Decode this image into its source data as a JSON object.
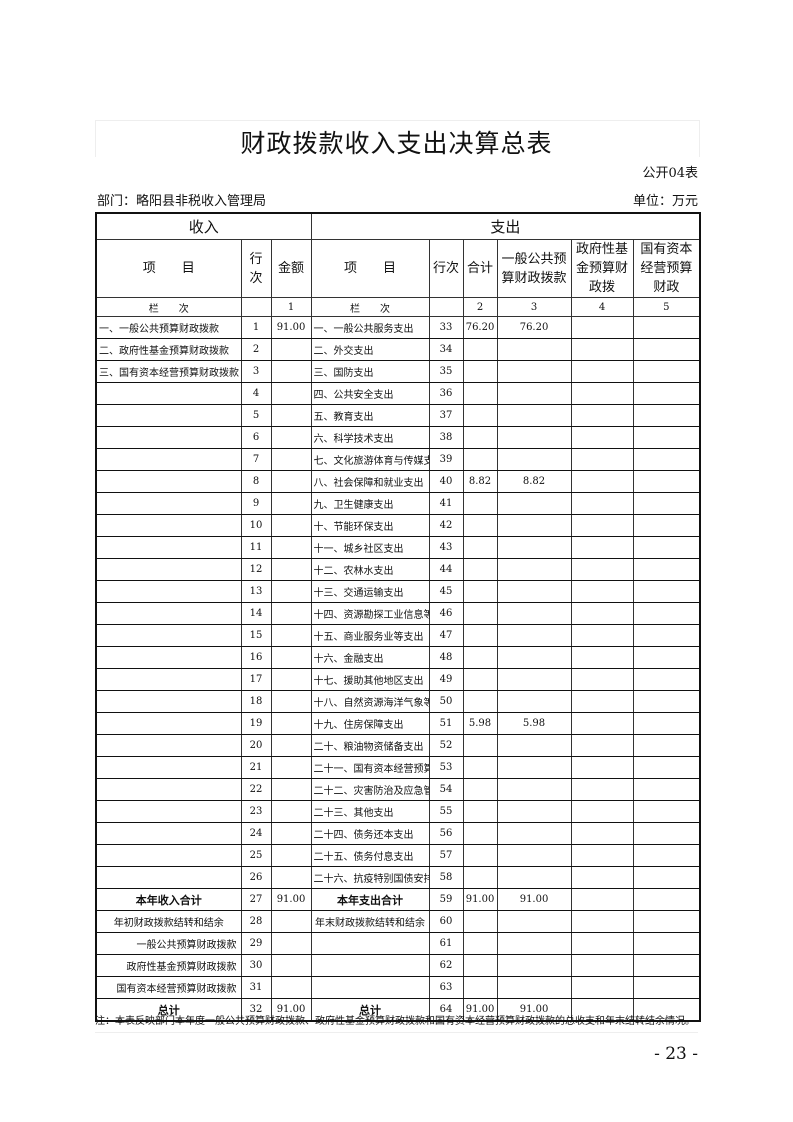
{
  "title": "财政拨款收入支出决算总表",
  "form_no": "公开04表",
  "department": "部门：略阳县非税收入管理局",
  "unit": "单位：万元",
  "header": {
    "income": "收入",
    "expense": "支出",
    "item": "项　　目",
    "line_no": "行次",
    "amount": "金额",
    "total": "合计",
    "general_budget": "一般公共预算财政拨款",
    "gov_fund": "政府性基金预算财政拨",
    "soe_capital": "国有资本经营预算财政",
    "column_label": "栏　　次",
    "col_1": "1",
    "col_2": "2",
    "col_3": "3",
    "col_4": "4",
    "col_5": "5"
  },
  "rows": [
    [
      "一、一般公共预算财政拨款",
      "1",
      "91.00",
      "一、一般公共服务支出",
      "33",
      "76.20",
      "76.20",
      "",
      ""
    ],
    [
      "二、政府性基金预算财政拨款",
      "2",
      "",
      "二、外交支出",
      "34",
      "",
      "",
      "",
      ""
    ],
    [
      "三、国有资本经营预算财政拨款",
      "3",
      "",
      "三、国防支出",
      "35",
      "",
      "",
      "",
      ""
    ],
    [
      "",
      "4",
      "",
      "四、公共安全支出",
      "36",
      "",
      "",
      "",
      ""
    ],
    [
      "",
      "5",
      "",
      "五、教育支出",
      "37",
      "",
      "",
      "",
      ""
    ],
    [
      "",
      "6",
      "",
      "六、科学技术支出",
      "38",
      "",
      "",
      "",
      ""
    ],
    [
      "",
      "7",
      "",
      "七、文化旅游体育与传媒支出",
      "39",
      "",
      "",
      "",
      ""
    ],
    [
      "",
      "8",
      "",
      "八、社会保障和就业支出",
      "40",
      "8.82",
      "8.82",
      "",
      ""
    ],
    [
      "",
      "9",
      "",
      "九、卫生健康支出",
      "41",
      "",
      "",
      "",
      ""
    ],
    [
      "",
      "10",
      "",
      "十、节能环保支出",
      "42",
      "",
      "",
      "",
      ""
    ],
    [
      "",
      "11",
      "",
      "十一、城乡社区支出",
      "43",
      "",
      "",
      "",
      ""
    ],
    [
      "",
      "12",
      "",
      "十二、农林水支出",
      "44",
      "",
      "",
      "",
      ""
    ],
    [
      "",
      "13",
      "",
      "十三、交通运输支出",
      "45",
      "",
      "",
      "",
      ""
    ],
    [
      "",
      "14",
      "",
      "十四、资源勘探工业信息等支",
      "46",
      "",
      "",
      "",
      ""
    ],
    [
      "",
      "15",
      "",
      "十五、商业服务业等支出",
      "47",
      "",
      "",
      "",
      ""
    ],
    [
      "",
      "16",
      "",
      "十六、金融支出",
      "48",
      "",
      "",
      "",
      ""
    ],
    [
      "",
      "17",
      "",
      "十七、援助其他地区支出",
      "49",
      "",
      "",
      "",
      ""
    ],
    [
      "",
      "18",
      "",
      "十八、自然资源海洋气象等支",
      "50",
      "",
      "",
      "",
      ""
    ],
    [
      "",
      "19",
      "",
      "十九、住房保障支出",
      "51",
      "5.98",
      "5.98",
      "",
      ""
    ],
    [
      "",
      "20",
      "",
      "二十、粮油物资储备支出",
      "52",
      "",
      "",
      "",
      ""
    ],
    [
      "",
      "21",
      "",
      "二十一、国有资本经营预算支",
      "53",
      "",
      "",
      "",
      ""
    ],
    [
      "",
      "22",
      "",
      "二十二、灾害防治及应急管理",
      "54",
      "",
      "",
      "",
      ""
    ],
    [
      "",
      "23",
      "",
      "二十三、其他支出",
      "55",
      "",
      "",
      "",
      ""
    ],
    [
      "",
      "24",
      "",
      "二十四、债务还本支出",
      "56",
      "",
      "",
      "",
      ""
    ],
    [
      "",
      "25",
      "",
      "二十五、债务付息支出",
      "57",
      "",
      "",
      "",
      ""
    ],
    [
      "",
      "26",
      "",
      "二十六、抗疫特别国债安排的",
      "58",
      "",
      "",
      "",
      ""
    ]
  ],
  "summary_rows": [
    [
      "本年收入合计",
      "27",
      "91.00",
      "本年支出合计",
      "59",
      "91.00",
      "91.00",
      "",
      ""
    ],
    [
      "年初财政拨款结转和结余",
      "28",
      "",
      "年末财政拨款结转和结余",
      "60",
      "",
      "",
      "",
      ""
    ],
    [
      "一般公共预算财政拨款",
      "29",
      "",
      "",
      "61",
      "",
      "",
      "",
      ""
    ],
    [
      "政府性基金预算财政拨款",
      "30",
      "",
      "",
      "62",
      "",
      "",
      "",
      ""
    ],
    [
      "国有资本经营预算财政拨款",
      "31",
      "",
      "",
      "63",
      "",
      "",
      "",
      ""
    ],
    [
      "总计",
      "32",
      "91.00",
      "总计",
      "64",
      "91.00",
      "91.00",
      "",
      ""
    ]
  ],
  "note": "注：本表反映部门本年度一般公共预算财政拨款、政府性基金预算财政拨款和国有资本经营预算财政拨款的总收支和年末结转结余情况。",
  "page_number": "- 23 -"
}
